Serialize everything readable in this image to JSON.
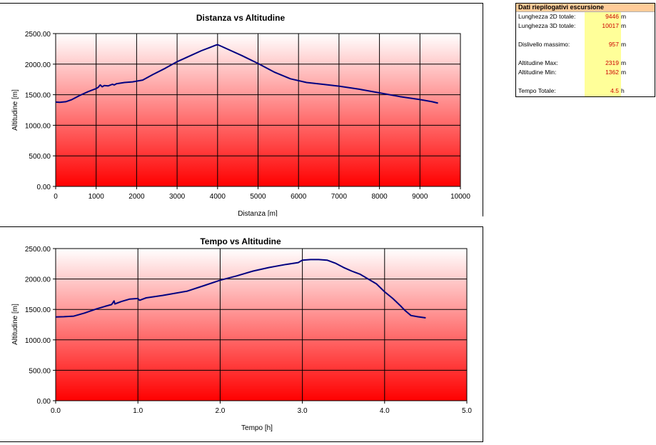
{
  "chart_data": [
    {
      "type": "line",
      "title": "Distanza vs Altitudine",
      "xlabel": "Distanza [m]",
      "ylabel": "Altitudine [m]",
      "xlim": [
        0,
        10000
      ],
      "ylim": [
        0,
        2500
      ],
      "xticks": [
        0,
        1000,
        2000,
        3000,
        4000,
        5000,
        6000,
        7000,
        8000,
        9000,
        10000
      ],
      "xtick_labels": [
        "0",
        "1000",
        "2000",
        "3000",
        "4000",
        "5000",
        "6000",
        "7000",
        "8000",
        "9000",
        "10000"
      ],
      "yticks": [
        0,
        500,
        1000,
        1500,
        2000,
        2500
      ],
      "ytick_labels": [
        "0.00",
        "500.00",
        "1000.00",
        "1500.00",
        "2000.00",
        "2500.00"
      ],
      "grid": true,
      "series": [
        {
          "color": "#000080",
          "x": [
            0,
            100,
            250,
            400,
            600,
            800,
            1000,
            1050,
            1100,
            1150,
            1200,
            1300,
            1400,
            1450,
            1500,
            1700,
            1900,
            2150,
            2400,
            2700,
            3000,
            3300,
            3600,
            3800,
            3950,
            4000,
            4100,
            4300,
            4600,
            5000,
            5400,
            5800,
            6200,
            6600,
            7000,
            7500,
            8000,
            8500,
            9000,
            9300,
            9446
          ],
          "y": [
            1380,
            1375,
            1385,
            1420,
            1490,
            1550,
            1600,
            1620,
            1660,
            1630,
            1650,
            1645,
            1670,
            1660,
            1680,
            1700,
            1710,
            1740,
            1830,
            1930,
            2040,
            2130,
            2220,
            2270,
            2310,
            2319,
            2290,
            2230,
            2140,
            2010,
            1870,
            1760,
            1700,
            1670,
            1640,
            1590,
            1530,
            1470,
            1420,
            1385,
            1362
          ]
        }
      ]
    },
    {
      "type": "line",
      "title": "Tempo vs Altitudine",
      "xlabel": "Tempo [h]",
      "ylabel": "Altitudine [m]",
      "xlim": [
        0,
        5
      ],
      "ylim": [
        0,
        2500
      ],
      "xticks": [
        0,
        1,
        2,
        3,
        4,
        5
      ],
      "xtick_labels": [
        "0.0",
        "1.0",
        "2.0",
        "3.0",
        "4.0",
        "5.0"
      ],
      "yticks": [
        0,
        500,
        1000,
        1500,
        2000,
        2500
      ],
      "ytick_labels": [
        "0.00",
        "500.00",
        "1000.00",
        "1500.00",
        "2000.00",
        "2500.00"
      ],
      "grid": true,
      "series": [
        {
          "color": "#000080",
          "x": [
            0,
            0.1,
            0.22,
            0.35,
            0.5,
            0.6,
            0.68,
            0.71,
            0.72,
            0.8,
            0.9,
            1.0,
            1.02,
            1.1,
            1.3,
            1.6,
            1.8,
            2.0,
            2.2,
            2.4,
            2.6,
            2.8,
            2.95,
            3.0,
            3.1,
            3.2,
            3.3,
            3.4,
            3.5,
            3.6,
            3.7,
            3.8,
            3.9,
            4.0,
            4.1,
            4.2,
            4.25,
            4.32,
            4.4,
            4.5
          ],
          "y": [
            1375,
            1380,
            1390,
            1440,
            1510,
            1550,
            1580,
            1640,
            1590,
            1630,
            1670,
            1680,
            1650,
            1690,
            1730,
            1800,
            1890,
            1980,
            2050,
            2130,
            2190,
            2240,
            2270,
            2310,
            2319,
            2319,
            2310,
            2260,
            2190,
            2130,
            2080,
            2000,
            1920,
            1790,
            1680,
            1550,
            1480,
            1400,
            1380,
            1362
          ]
        }
      ]
    }
  ],
  "summary": {
    "title": "Dati riepilogativi escursione",
    "rows": [
      {
        "label": "Lunghezza 2D totale:",
        "value": "9446",
        "unit": "m"
      },
      {
        "label": "Lunghezza 3D totale:",
        "value": "10017",
        "unit": "m"
      },
      {
        "label": "Dislivello massimo:",
        "value": "957",
        "unit": "m"
      },
      {
        "label": "Altitudine Max:",
        "value": "2319",
        "unit": "m"
      },
      {
        "label": "Altitudine Min:",
        "value": "1362",
        "unit": "m"
      },
      {
        "label": "Tempo Totale:",
        "value": "4.5",
        "unit": "h"
      }
    ]
  }
}
